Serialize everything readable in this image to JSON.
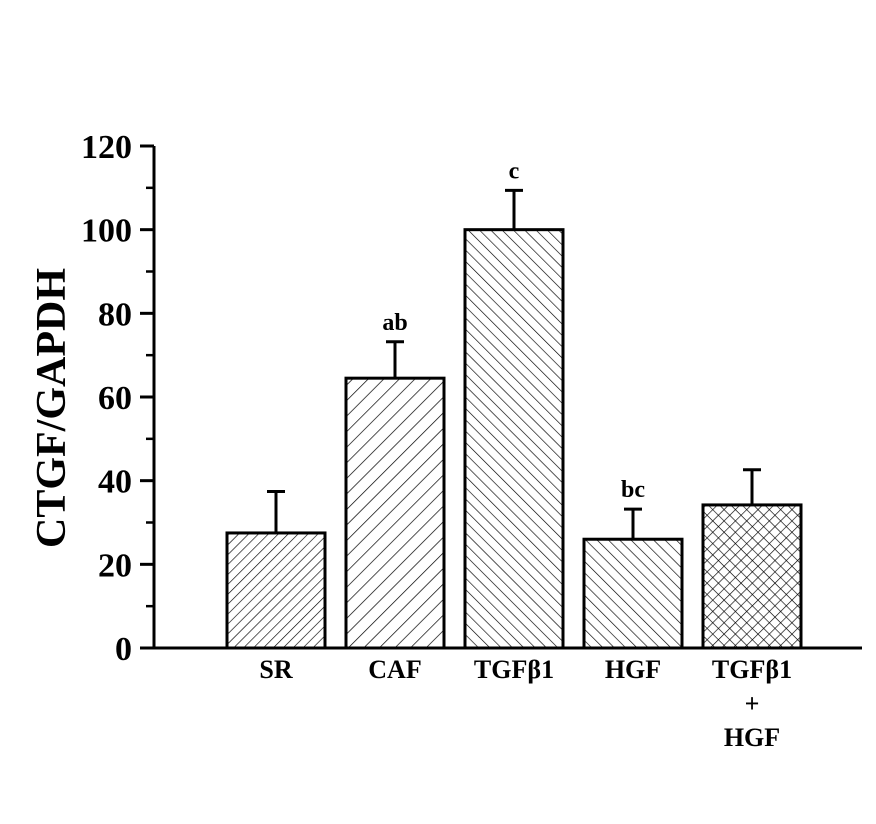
{
  "chart_data": {
    "type": "bar",
    "ylabel": "CTGF/GAPDH",
    "xlabel": "",
    "ylim": [
      0,
      120
    ],
    "y_ticks": [
      0,
      20,
      40,
      60,
      80,
      100,
      120
    ],
    "y_tick_labels": [
      "0",
      "20",
      "40",
      "60",
      "80",
      "100",
      "120"
    ],
    "grid": false,
    "categories": [
      [
        "SR"
      ],
      [
        "CAF"
      ],
      [
        "TGFβ1"
      ],
      [
        "HGF"
      ],
      [
        "TGFβ1",
        "+",
        "HGF"
      ]
    ],
    "values": [
      27.5,
      64.5,
      100,
      26,
      34.2
    ],
    "errors": [
      9.9,
      8.7,
      9.4,
      7.2,
      8.4
    ],
    "annotations": [
      "",
      "ab",
      "c",
      "bc",
      ""
    ],
    "patterns": [
      "diag-right-dense",
      "diag-right",
      "diag-left",
      "diag-left",
      "crosshatch"
    ],
    "colors": {
      "bar_stroke": "#000000",
      "bar_fill": "#ffffff",
      "pattern_stroke": "#000000",
      "axis": "#000000"
    }
  }
}
